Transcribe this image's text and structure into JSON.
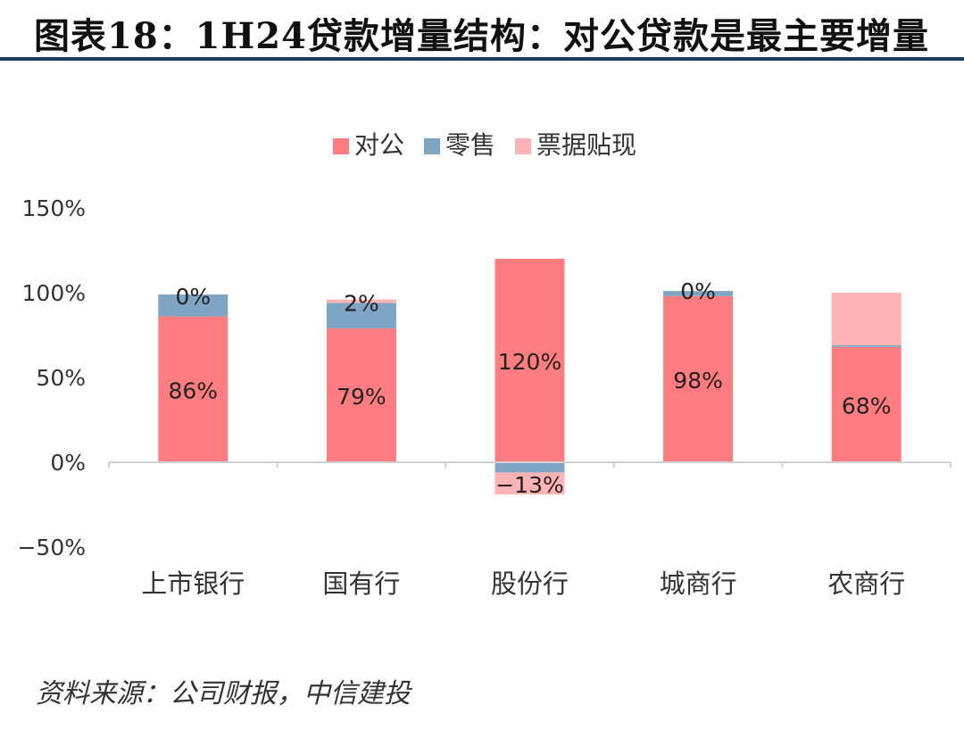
{
  "title": "图表18：1H24贷款增量结构：对公贷款是最主要增量",
  "source": "资料来源：公司财报，中信建投",
  "colors": {
    "corporate": "#ff7c80",
    "retail": "#7ea6c4",
    "discount": "#ffb3b5",
    "axis": "#d0d0d0",
    "text": "#222222",
    "title_rule": "#1f3b5c"
  },
  "chart_data": {
    "type": "bar",
    "stacked": true,
    "categories": [
      "上市银行",
      "国有行",
      "股份行",
      "城商行",
      "农商行"
    ],
    "series": [
      {
        "name": "对公",
        "color": "#ff7c80",
        "values": [
          86,
          79,
          120,
          98,
          68
        ]
      },
      {
        "name": "零售",
        "color": "#7ea6c4",
        "values": [
          13,
          15,
          -6,
          3,
          1
        ]
      },
      {
        "name": "票据贴现",
        "color": "#ffb3b5",
        "values": [
          0,
          2,
          -13,
          0,
          31
        ]
      }
    ],
    "data_labels": [
      {
        "category": "上市银行",
        "series": "对公",
        "text": "86%"
      },
      {
        "category": "上市银行",
        "series": "票据贴现",
        "text": "0%"
      },
      {
        "category": "国有行",
        "series": "对公",
        "text": "79%"
      },
      {
        "category": "国有行",
        "series": "票据贴现",
        "text": "2%"
      },
      {
        "category": "股份行",
        "series": "对公",
        "text": "120%"
      },
      {
        "category": "股份行",
        "series": "票据贴现",
        "text": "−13%"
      },
      {
        "category": "城商行",
        "series": "对公",
        "text": "98%"
      },
      {
        "category": "城商行",
        "series": "票据贴现",
        "text": "0%"
      },
      {
        "category": "农商行",
        "series": "对公",
        "text": "68%"
      }
    ],
    "yticks": [
      "150%",
      "100%",
      "50%",
      "0%",
      "−50%"
    ],
    "ylim": [
      -50,
      150
    ],
    "legend_position": "top",
    "grid": false
  }
}
